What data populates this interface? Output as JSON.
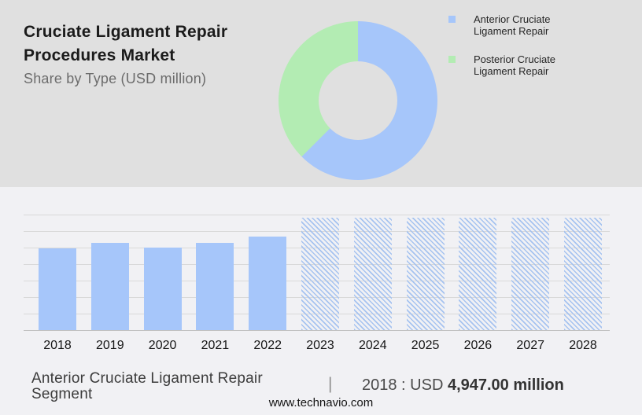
{
  "header": {
    "title_line1": "Cruciate Ligament Repair",
    "title_line2": "Procedures Market",
    "subtitle": "Share by Type (USD million)"
  },
  "legend": {
    "items": [
      {
        "name": "anterior",
        "color": "#a6c6fa",
        "line1": "Anterior Cruciate",
        "line2": "Ligament Repair"
      },
      {
        "name": "posterior",
        "color": "#b3ecb3",
        "line1": "Posterior Cruciate",
        "line2": "Ligament Repair"
      }
    ]
  },
  "footer": {
    "segment_line1": "Anterior Cruciate Ligament Repair",
    "segment_line2": "Segment",
    "separator": "|",
    "value_prefix": "2018 : USD",
    "value_bold": "4,947.00 million",
    "website": "www.technavio.com"
  },
  "colors": {
    "top_bg": "#e0e0e0",
    "bottom_bg": "#f1f1f4",
    "gridline": "#d9d9d9",
    "baseline": "#c2c2c2"
  },
  "chart_data": [
    {
      "type": "pie",
      "subtype": "donut",
      "title": "Share by Type (USD million)",
      "start_angle_deg": 0,
      "direction": "clockwise",
      "legend_position": "right",
      "slices": [
        {
          "label": "Anterior Cruciate Ligament Repair",
          "percent": 62.5,
          "color": "#a6c6fa"
        },
        {
          "label": "Posterior Cruciate Ligament Repair",
          "percent": 37.5,
          "color": "#b3ecb3"
        }
      ]
    },
    {
      "type": "bar",
      "title": "",
      "xlabel": "",
      "ylabel": "",
      "units": "USD million",
      "categories": [
        "2018",
        "2019",
        "2020",
        "2021",
        "2022",
        "2023",
        "2024",
        "2025",
        "2026",
        "2027",
        "2028"
      ],
      "values": [
        4947,
        5270,
        4980,
        5280,
        5650,
        6790,
        6790,
        6790,
        6790,
        6790,
        6790
      ],
      "forecast": [
        false,
        false,
        false,
        false,
        false,
        true,
        true,
        true,
        true,
        true,
        true
      ],
      "forecast_note": "2023-2028 shown as equal-height hatched placeholders (values masked); 2019-2022 estimated from gridlines",
      "ylim": [
        0,
        7000
      ],
      "gridline_step": 1000,
      "grid": true,
      "bar_color": "#a6c6fa",
      "hatch_color": "#a6c3f0",
      "annotation": "Anterior Cruciate Ligament Repair Segment | 2018 : USD 4,947.00 million"
    }
  ]
}
